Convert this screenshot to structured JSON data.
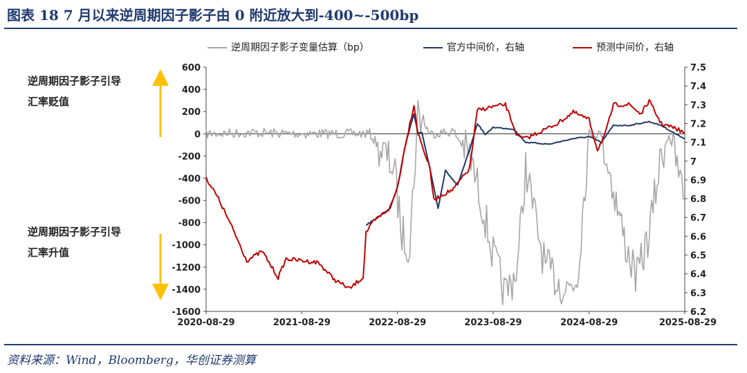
{
  "figure": {
    "title": "图表 18    7 月以来逆周期因子影子由 0 附近放大到-400~-500bp",
    "source": "资料来源：Wind，Bloomberg，华创证券测算"
  },
  "annotations": {
    "up_text_line1": "逆周期因子影子引导",
    "up_text_line2": "汇率贬值",
    "down_text_line1": "逆周期因子影子引导",
    "down_text_line2": "汇率升值"
  },
  "colors": {
    "shadow": "#a6a6a6",
    "official": "#1f3864",
    "predicted": "#c00000",
    "arrow": "#ffc000",
    "title": "#1f3a6e"
  },
  "chart_data": {
    "type": "line",
    "x_labels": [
      "2020-08-29",
      "2021-08-29",
      "2022-08-29",
      "2023-08-29",
      "2024-08-29",
      "2025-08-29"
    ],
    "xlim": [
      "2020-08-29",
      "2025-08-29"
    ],
    "left_axis": {
      "ylim": [
        -1600,
        600
      ],
      "ticks": [
        600,
        400,
        200,
        0,
        -200,
        -400,
        -600,
        -800,
        -1000,
        -1200,
        -1400,
        -1600
      ]
    },
    "right_axis": {
      "ylim": [
        6.2,
        7.5
      ],
      "ticks": [
        7.5,
        7.4,
        7.3,
        7.2,
        7.1,
        7,
        6.9,
        6.8,
        6.7,
        6.6,
        6.5,
        6.4,
        6.3,
        6.2
      ]
    },
    "legend": {
      "placement": "top"
    },
    "grid": false,
    "series": [
      {
        "name": "逆周期因子影子变量估算（bp）",
        "axis": "left",
        "points": [
          [
            "2020-08-29",
            0
          ],
          [
            "2021-02-28",
            10
          ],
          [
            "2021-08-29",
            0
          ],
          [
            "2022-02-28",
            0
          ],
          [
            "2022-05-15",
            0
          ],
          [
            "2022-06-30",
            -150
          ],
          [
            "2022-08-15",
            -300
          ],
          [
            "2022-09-15",
            -900
          ],
          [
            "2022-10-15",
            -1000
          ],
          [
            "2022-11-15",
            200
          ],
          [
            "2022-12-31",
            0
          ],
          [
            "2023-03-31",
            20
          ],
          [
            "2023-05-31",
            -200
          ],
          [
            "2023-07-15",
            -600
          ],
          [
            "2023-08-29",
            -1100
          ],
          [
            "2023-10-15",
            -1450
          ],
          [
            "2023-11-30",
            -1200
          ],
          [
            "2023-12-31",
            -300
          ],
          [
            "2024-01-31",
            -700
          ],
          [
            "2024-03-15",
            -1200
          ],
          [
            "2024-05-31",
            -1400
          ],
          [
            "2024-07-15",
            -1300
          ],
          [
            "2024-08-29",
            0
          ],
          [
            "2024-10-15",
            0
          ],
          [
            "2024-11-30",
            -500
          ],
          [
            "2025-01-15",
            -1000
          ],
          [
            "2025-02-28",
            -1300
          ],
          [
            "2025-04-15",
            -900
          ],
          [
            "2025-05-31",
            -200
          ],
          [
            "2025-06-30",
            0
          ],
          [
            "2025-07-31",
            -300
          ],
          [
            "2025-08-29",
            -600
          ]
        ]
      },
      {
        "name": "官方中间价，右轴",
        "axis": "right",
        "points": [
          [
            "2022-05-01",
            6.66
          ],
          [
            "2022-06-15",
            6.7
          ],
          [
            "2022-08-01",
            6.75
          ],
          [
            "2022-08-29",
            6.86
          ],
          [
            "2022-09-30",
            7.1
          ],
          [
            "2022-10-31",
            7.25
          ],
          [
            "2022-11-15",
            7.15
          ],
          [
            "2022-11-30",
            7.15
          ],
          [
            "2022-12-31",
            6.96
          ],
          [
            "2023-01-31",
            6.75
          ],
          [
            "2023-02-28",
            6.95
          ],
          [
            "2023-04-15",
            6.87
          ],
          [
            "2023-05-31",
            7.06
          ],
          [
            "2023-06-30",
            7.2
          ],
          [
            "2023-07-31",
            7.14
          ],
          [
            "2023-08-29",
            7.18
          ],
          [
            "2023-11-15",
            7.17
          ],
          [
            "2023-12-31",
            7.1
          ],
          [
            "2024-03-31",
            7.09
          ],
          [
            "2024-06-30",
            7.12
          ],
          [
            "2024-08-29",
            7.13
          ],
          [
            "2024-10-15",
            7.1
          ],
          [
            "2024-11-30",
            7.19
          ],
          [
            "2025-01-31",
            7.19
          ],
          [
            "2025-04-15",
            7.21
          ],
          [
            "2025-05-31",
            7.19
          ],
          [
            "2025-07-31",
            7.14
          ],
          [
            "2025-08-29",
            7.12
          ]
        ]
      },
      {
        "name": "预测中间价，右轴",
        "axis": "right",
        "points": [
          [
            "2020-08-29",
            6.91
          ],
          [
            "2020-10-15",
            6.8
          ],
          [
            "2020-12-15",
            6.62
          ],
          [
            "2021-01-31",
            6.47
          ],
          [
            "2021-03-31",
            6.52
          ],
          [
            "2021-05-31",
            6.38
          ],
          [
            "2021-06-30",
            6.48
          ],
          [
            "2021-08-29",
            6.47
          ],
          [
            "2021-10-31",
            6.46
          ],
          [
            "2021-12-31",
            6.37
          ],
          [
            "2022-02-28",
            6.32
          ],
          [
            "2022-03-31",
            6.36
          ],
          [
            "2022-04-20",
            6.38
          ],
          [
            "2022-05-01",
            6.62
          ],
          [
            "2022-05-31",
            6.68
          ],
          [
            "2022-07-31",
            6.75
          ],
          [
            "2022-08-29",
            6.86
          ],
          [
            "2022-09-30",
            7.1
          ],
          [
            "2022-10-31",
            7.3
          ],
          [
            "2022-11-15",
            7.15
          ],
          [
            "2022-12-31",
            6.96
          ],
          [
            "2023-01-15",
            6.79
          ],
          [
            "2023-02-15",
            6.82
          ],
          [
            "2023-03-31",
            6.85
          ],
          [
            "2023-04-15",
            6.88
          ],
          [
            "2023-05-31",
            6.96
          ],
          [
            "2023-06-30",
            7.27
          ],
          [
            "2023-08-29",
            7.29
          ],
          [
            "2023-10-15",
            7.3
          ],
          [
            "2023-11-30",
            7.13
          ],
          [
            "2023-12-31",
            7.12
          ],
          [
            "2024-02-15",
            7.15
          ],
          [
            "2024-04-30",
            7.2
          ],
          [
            "2024-06-30",
            7.26
          ],
          [
            "2024-08-29",
            7.22
          ],
          [
            "2024-09-30",
            7.06
          ],
          [
            "2024-10-31",
            7.15
          ],
          [
            "2024-11-30",
            7.3
          ],
          [
            "2025-01-31",
            7.3
          ],
          [
            "2025-03-15",
            7.25
          ],
          [
            "2025-04-15",
            7.32
          ],
          [
            "2025-05-31",
            7.2
          ],
          [
            "2025-07-31",
            7.17
          ],
          [
            "2025-08-29",
            7.15
          ]
        ]
      }
    ]
  }
}
